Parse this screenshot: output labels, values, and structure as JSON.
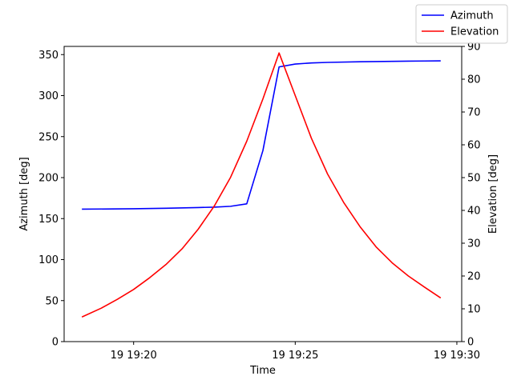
{
  "chart_data": {
    "type": "line",
    "xlabel": "Time",
    "ylabel_left": "Azimuth [deg]",
    "ylabel_right": "Elevation [deg]",
    "x_tick_labels": [
      "19 19:20",
      "19 19:25",
      "19 19:30"
    ],
    "x_tick_values_min": [
      20,
      25,
      30
    ],
    "xlim_min": [
      17.85,
      30.15
    ],
    "ylim_left": [
      0,
      360
    ],
    "yticks_left": [
      "0",
      "50",
      "100",
      "150",
      "200",
      "250",
      "300",
      "350"
    ],
    "ylim_right": [
      0,
      90
    ],
    "yticks_right": [
      "0",
      "10",
      "20",
      "30",
      "40",
      "50",
      "60",
      "70",
      "80",
      "90"
    ],
    "legend_position": "upper-right outside",
    "grid": false,
    "series": [
      {
        "name": "Azimuth",
        "axis": "left",
        "color": "#0000ff",
        "x_min": [
          18.4,
          20.0,
          21.0,
          22.0,
          22.5,
          23.0,
          23.5,
          24.0,
          24.5,
          25.0,
          25.5,
          26.0,
          27.0,
          28.0,
          29.0,
          29.5
        ],
        "values": [
          161.5,
          162.0,
          162.6,
          163.5,
          164.0,
          165.0,
          168.0,
          233.0,
          335.0,
          338.5,
          339.8,
          340.5,
          341.3,
          341.8,
          342.2,
          342.4
        ]
      },
      {
        "name": "Elevation",
        "axis": "right",
        "color": "#ff0000",
        "x_min": [
          18.4,
          19.0,
          19.5,
          20.0,
          20.5,
          21.0,
          21.5,
          22.0,
          22.5,
          23.0,
          23.5,
          24.0,
          24.5,
          25.0,
          25.5,
          26.0,
          26.5,
          27.0,
          27.5,
          28.0,
          28.5,
          29.0,
          29.5
        ],
        "values": [
          7.5,
          10.2,
          12.9,
          15.9,
          19.5,
          23.5,
          28.3,
          34.3,
          41.4,
          50.1,
          61.1,
          74.0,
          88.0,
          75.0,
          62.0,
          51.1,
          42.4,
          35.1,
          28.9,
          24.0,
          20.0,
          16.6,
          13.3
        ]
      }
    ]
  }
}
